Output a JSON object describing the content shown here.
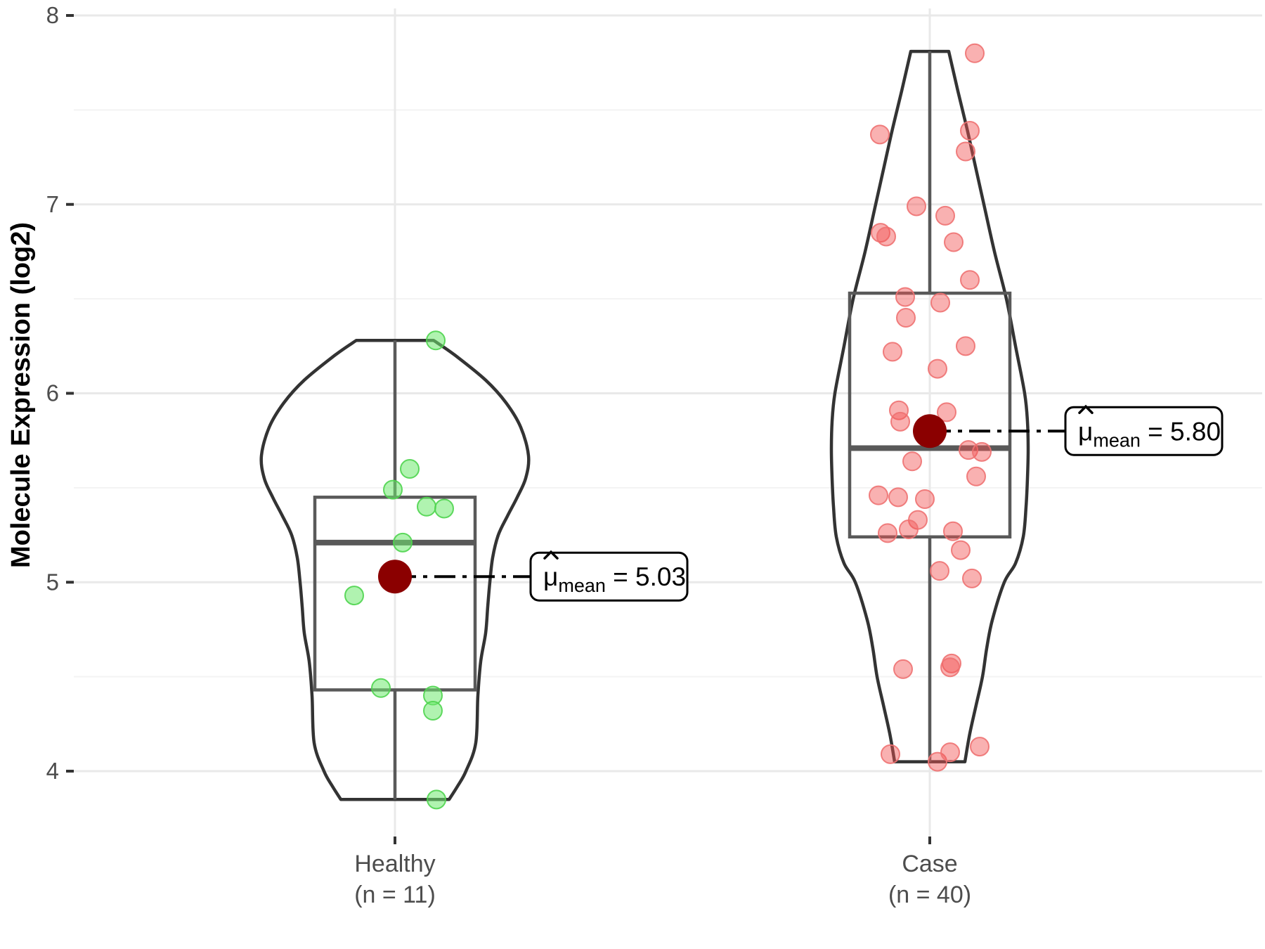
{
  "chart_data": {
    "type": "violin",
    "title": "",
    "xlabel": "",
    "ylabel": "Molecule Expression (log2)",
    "ylim": [
      3.65,
      8.03
    ],
    "grid": "on",
    "legend": "none",
    "y_major_gridlines": [
      8,
      7,
      6,
      5,
      4
    ],
    "y_minor_gridlines": [
      7.5,
      6.5,
      5.5,
      4.5
    ],
    "y_tick_labels": [
      "8",
      "7",
      "6",
      "5",
      "4"
    ],
    "colors": {
      "mean_dot": "#8b0000",
      "violin_outline": "#333333",
      "box_outline": "#595959",
      "major_grid": "#e9e9e9",
      "minor_grid": "#f3f3f3",
      "axis_text": "#4d4d4d",
      "tick_mark": "#333333",
      "annotation_line": "#000000",
      "annotation_box_fill": "#ffffff",
      "annotation_box_border": "#000000"
    },
    "groups": [
      {
        "label": "Healthy",
        "sublabel": "(n = 11)",
        "n": 11,
        "mean": 5.03,
        "mean_annotation": {
          "symbol": "μ",
          "hat": true,
          "subscript": "mean",
          "rhs": "= 5.03"
        },
        "box": {
          "q1": 4.43,
          "median": 5.21,
          "q3": 5.45,
          "whisker_low": 3.85,
          "whisker_high": 6.28
        },
        "point_fill": "#6fe96f",
        "point_stroke": "#4fd44f",
        "point_opacity": 0.55,
        "points": [
          [
            58,
            6.28
          ],
          [
            21,
            5.6
          ],
          [
            -3,
            5.49
          ],
          [
            45,
            5.4
          ],
          [
            70,
            5.39
          ],
          [
            11,
            5.21
          ],
          [
            -58,
            4.93
          ],
          [
            -20,
            4.44
          ],
          [
            54,
            4.4
          ],
          [
            54,
            4.32
          ],
          [
            59,
            3.85
          ]
        ],
        "violin_profile": [
          [
            6.28,
            55
          ],
          [
            6.2,
            86
          ],
          [
            6.07,
            129
          ],
          [
            5.95,
            158
          ],
          [
            5.82,
            179
          ],
          [
            5.67,
            190
          ],
          [
            5.55,
            186
          ],
          [
            5.45,
            174
          ],
          [
            5.35,
            160
          ],
          [
            5.25,
            147
          ],
          [
            5.13,
            139
          ],
          [
            5.0,
            135
          ],
          [
            4.87,
            132
          ],
          [
            4.73,
            129
          ],
          [
            4.58,
            122
          ],
          [
            4.4,
            118
          ],
          [
            4.15,
            115
          ],
          [
            4.0,
            101
          ],
          [
            3.92,
            89
          ],
          [
            3.85,
            77
          ]
        ]
      },
      {
        "label": "Case",
        "sublabel": "(n = 40)",
        "n": 40,
        "mean": 5.8,
        "mean_annotation": {
          "symbol": "μ",
          "hat": true,
          "subscript": "mean",
          "rhs": "= 5.80"
        },
        "box": {
          "q1": 5.24,
          "median": 5.71,
          "q3": 6.53,
          "whisker_low": 4.05,
          "whisker_high": 7.81
        },
        "point_fill": "#f15151",
        "point_stroke": "#ee7272",
        "point_opacity": 0.45,
        "points": [
          [
            64,
            7.8
          ],
          [
            -71,
            7.37
          ],
          [
            57,
            7.39
          ],
          [
            51,
            7.28
          ],
          [
            -19,
            6.99
          ],
          [
            22,
            6.94
          ],
          [
            -70,
            6.85
          ],
          [
            -62,
            6.83
          ],
          [
            34,
            6.8
          ],
          [
            57,
            6.6
          ],
          [
            -35,
            6.51
          ],
          [
            15,
            6.48
          ],
          [
            -34,
            6.4
          ],
          [
            -53,
            6.22
          ],
          [
            51,
            6.25
          ],
          [
            11,
            6.13
          ],
          [
            -44,
            5.91
          ],
          [
            24,
            5.9
          ],
          [
            -42,
            5.85
          ],
          [
            55,
            5.7
          ],
          [
            74,
            5.69
          ],
          [
            -25,
            5.64
          ],
          [
            66,
            5.56
          ],
          [
            -73,
            5.46
          ],
          [
            -45,
            5.45
          ],
          [
            -7,
            5.44
          ],
          [
            -17,
            5.33
          ],
          [
            -60,
            5.26
          ],
          [
            -30,
            5.28
          ],
          [
            33,
            5.27
          ],
          [
            44,
            5.17
          ],
          [
            14,
            5.06
          ],
          [
            60,
            5.02
          ],
          [
            -38,
            4.54
          ],
          [
            31,
            4.57
          ],
          [
            29,
            4.55
          ],
          [
            -56,
            4.09
          ],
          [
            11,
            4.05
          ],
          [
            29,
            4.1
          ],
          [
            71,
            4.13
          ]
        ],
        "violin_profile": [
          [
            7.81,
            27
          ],
          [
            7.6,
            40
          ],
          [
            7.4,
            53
          ],
          [
            7.2,
            65
          ],
          [
            7.0,
            77
          ],
          [
            6.75,
            92
          ],
          [
            6.5,
            109
          ],
          [
            6.25,
            122
          ],
          [
            6.0,
            135
          ],
          [
            5.85,
            139
          ],
          [
            5.7,
            140
          ],
          [
            5.55,
            139
          ],
          [
            5.4,
            137
          ],
          [
            5.24,
            133
          ],
          [
            5.1,
            122
          ],
          [
            5.0,
            106
          ],
          [
            4.8,
            89
          ],
          [
            4.65,
            81
          ],
          [
            4.5,
            75
          ],
          [
            4.35,
            66
          ],
          [
            4.2,
            57
          ],
          [
            4.05,
            50
          ]
        ]
      }
    ]
  }
}
